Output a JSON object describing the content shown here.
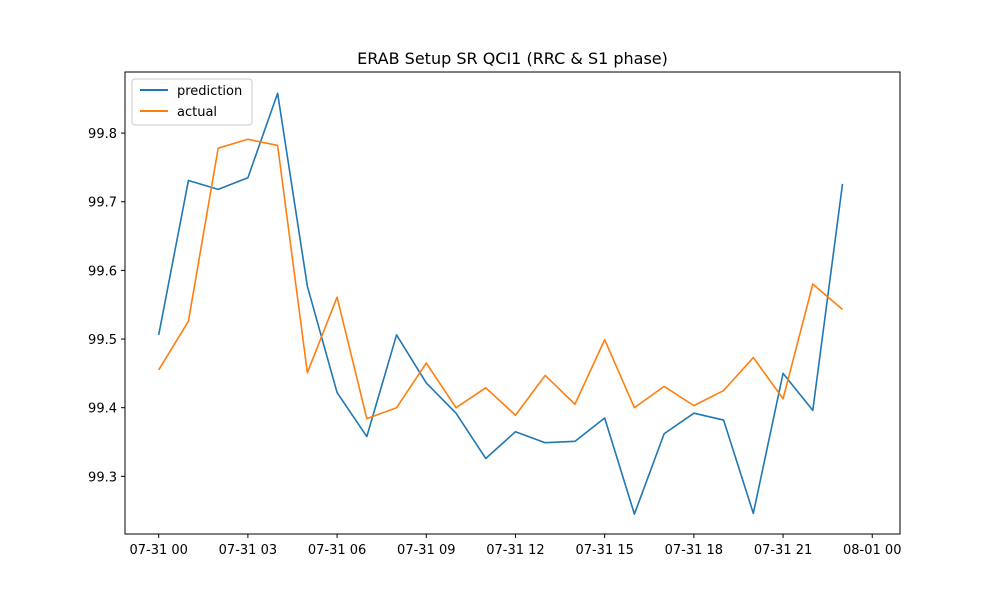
{
  "chart_data": {
    "type": "line",
    "title": "ERAB Setup SR QCI1 (RRC & S1 phase)",
    "xlabel": "",
    "ylabel": "",
    "x": [
      "07-31 00:00",
      "07-31 01:00",
      "07-31 02:00",
      "07-31 03:00",
      "07-31 04:00",
      "07-31 05:00",
      "07-31 06:00",
      "07-31 07:00",
      "07-31 08:00",
      "07-31 09:00",
      "07-31 10:00",
      "07-31 11:00",
      "07-31 12:00",
      "07-31 13:00",
      "07-31 14:00",
      "07-31 15:00",
      "07-31 16:00",
      "07-31 17:00",
      "07-31 18:00",
      "07-31 19:00",
      "07-31 20:00",
      "07-31 21:00",
      "07-31 22:00",
      "07-31 23:00"
    ],
    "xlim": [
      "07-30 22:52",
      "08-01 00:56"
    ],
    "ylim": [
      99.216,
      99.889
    ],
    "x_ticks": [
      "07-31 00",
      "07-31 03",
      "07-31 06",
      "07-31 09",
      "07-31 12",
      "07-31 15",
      "07-31 18",
      "07-31 21",
      "08-01 00"
    ],
    "y_ticks": [
      "99.3",
      "99.4",
      "99.5",
      "99.6",
      "99.7",
      "99.8"
    ],
    "legend_position": "top-left",
    "grid": false,
    "series": [
      {
        "name": "prediction",
        "color": "#1f77b4",
        "values": [
          99.506,
          99.731,
          99.718,
          99.735,
          99.858,
          99.577,
          99.422,
          99.358,
          99.506,
          99.436,
          99.392,
          99.326,
          99.365,
          99.349,
          99.351,
          99.385,
          99.245,
          99.362,
          99.392,
          99.382,
          99.246,
          99.45,
          99.396,
          99.726
        ]
      },
      {
        "name": "actual",
        "color": "#ff7f0e",
        "values": [
          99.455,
          99.526,
          99.778,
          99.791,
          99.782,
          99.451,
          99.561,
          99.384,
          99.4,
          99.465,
          99.4,
          99.429,
          99.389,
          99.447,
          99.405,
          99.499,
          99.4,
          99.431,
          99.403,
          99.425,
          99.473,
          99.413,
          99.58,
          99.543
        ]
      }
    ]
  }
}
